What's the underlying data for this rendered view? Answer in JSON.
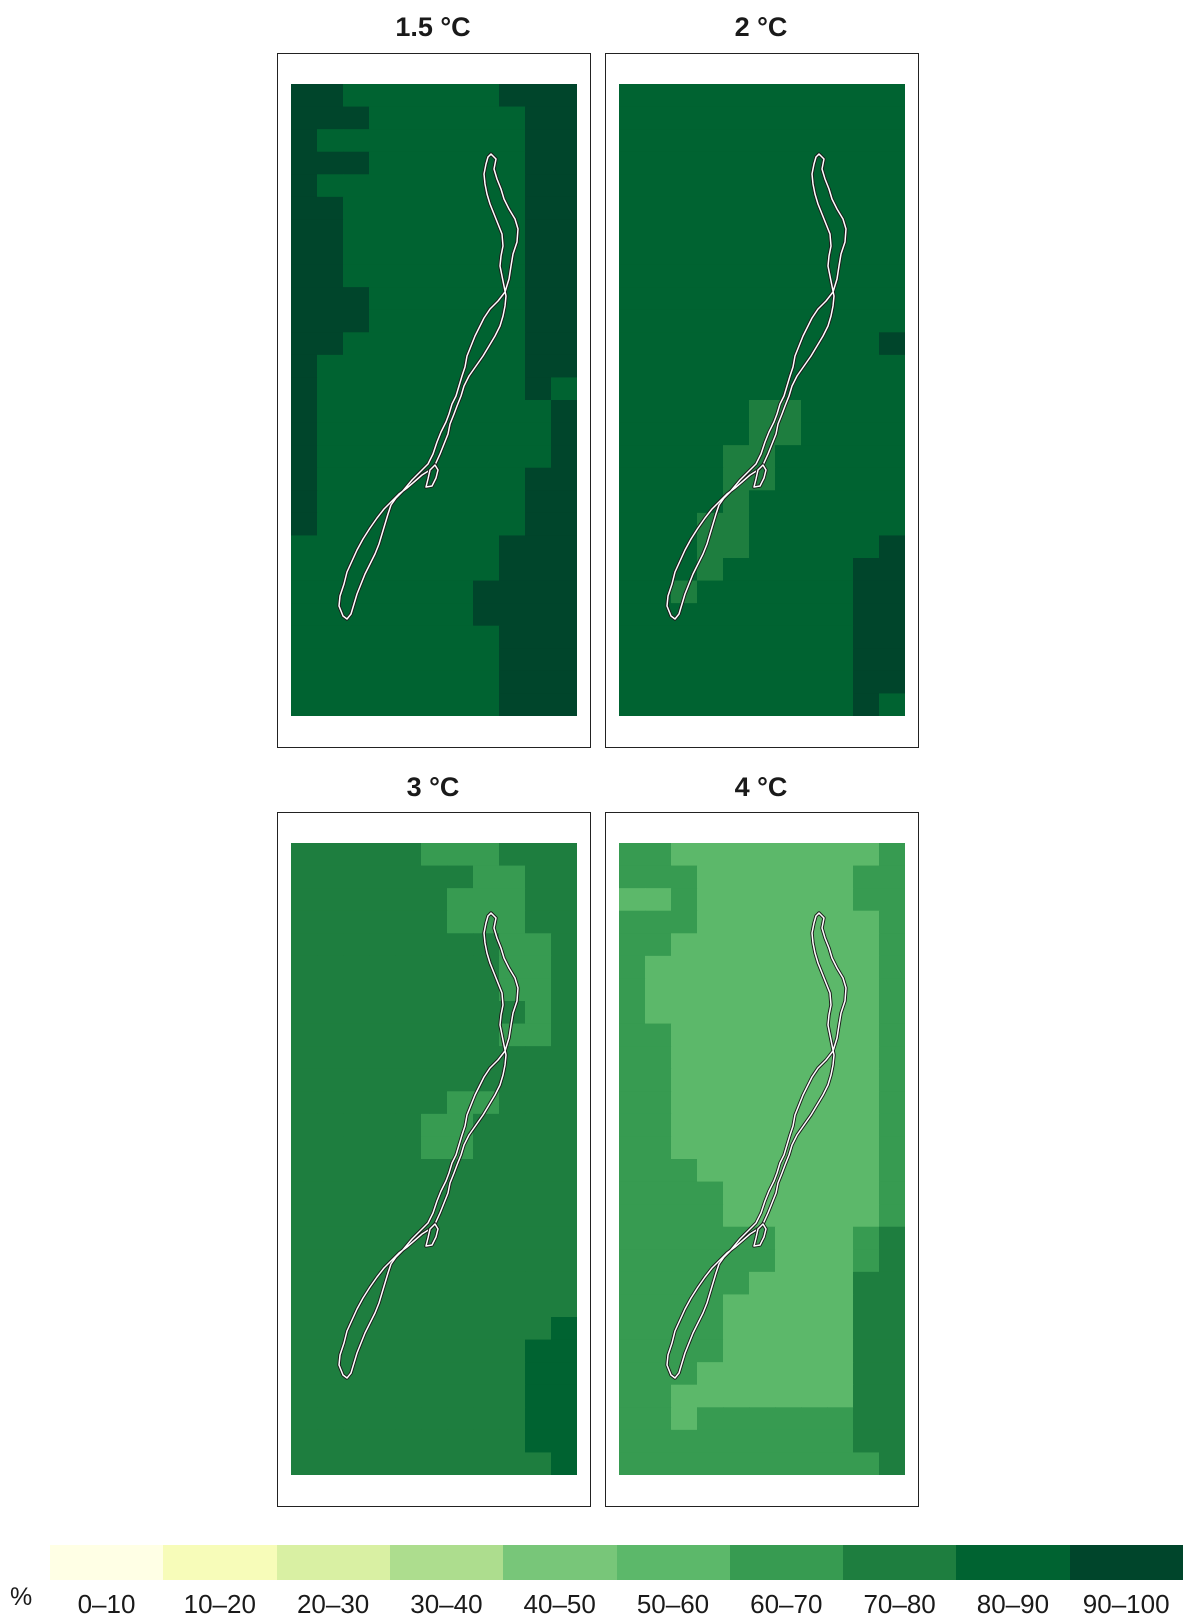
{
  "chart_data": {
    "type": "heatmap",
    "unit": "%",
    "legend": {
      "classes": [
        "0–10",
        "10–20",
        "20–30",
        "30–40",
        "40–50",
        "50–60",
        "60–70",
        "70–80",
        "80–90",
        "90–100"
      ],
      "colors": [
        "#ffffe5",
        "#f7fcb9",
        "#d9f0a3",
        "#addd8e",
        "#78c679",
        "#5cb86a",
        "#379b51",
        "#1e7e3f",
        "#006331",
        "#00452b"
      ]
    },
    "panels": [
      {
        "title": "1.5 °C",
        "rows": [
          "99888888999",
          "99988888899",
          "98888888899",
          "99988888899",
          "98888888899",
          "99888888899",
          "99888888899",
          "99888888899",
          "99888888899",
          "99988888899",
          "99988888899",
          "99888888899",
          "98888888899",
          "98888888898",
          "98888888889",
          "98888888889",
          "98888888889",
          "98888888899",
          "98888888899",
          "98888888899",
          "88888888999",
          "88888888999",
          "88888889999",
          "88888889999",
          "88888888999",
          "88888888999",
          "88888888999",
          "88888888999"
        ]
      },
      {
        "title": "2 °C",
        "rows": [
          "88888888888",
          "88888888888",
          "88888888888",
          "88888888888",
          "88888888888",
          "88888888888",
          "88888888888",
          "88888888888",
          "88888888888",
          "88888888888",
          "88888888888",
          "88888888889",
          "88888888888",
          "88888888888",
          "88888778888",
          "88888778888",
          "88887788888",
          "88887788888",
          "88887888888",
          "88877888888",
          "88877888889",
          "88878888899",
          "88788888899",
          "88888888899",
          "88888888899",
          "88888888899",
          "88888888899",
          "88888888898"
        ]
      },
      {
        "title": "3 °C",
        "rows": [
          "77777666777",
          "77777776677",
          "77777766677",
          "77777766677",
          "77777777667",
          "77777777667",
          "77777777667",
          "77777777767",
          "77777777667",
          "77777777777",
          "77777777777",
          "77777766777",
          "77777667777",
          "77777667777",
          "77777777777",
          "77777777777",
          "77777777777",
          "77777777777",
          "77777777777",
          "77777777777",
          "77777777777",
          "77777777778",
          "77777777788",
          "77777777788",
          "77777777788",
          "77777777788",
          "77777777788",
          "77777777778"
        ]
      },
      {
        "title": "4 °C",
        "rows": [
          "66555555556",
          "66655555566",
          "55655555566",
          "66655555556",
          "66555555556",
          "65555555556",
          "65555555556",
          "65555555556",
          "66555555556",
          "66555555556",
          "66555555556",
          "66555555556",
          "66555555556",
          "66555555556",
          "66655555556",
          "66665555556",
          "66665555556",
          "66666655567",
          "66666655567",
          "66666555577",
          "66665555577",
          "66665555577",
          "66665555577",
          "66655555577",
          "66555555577",
          "66566666677",
          "66666666677",
          "66666666667"
        ]
      }
    ]
  }
}
